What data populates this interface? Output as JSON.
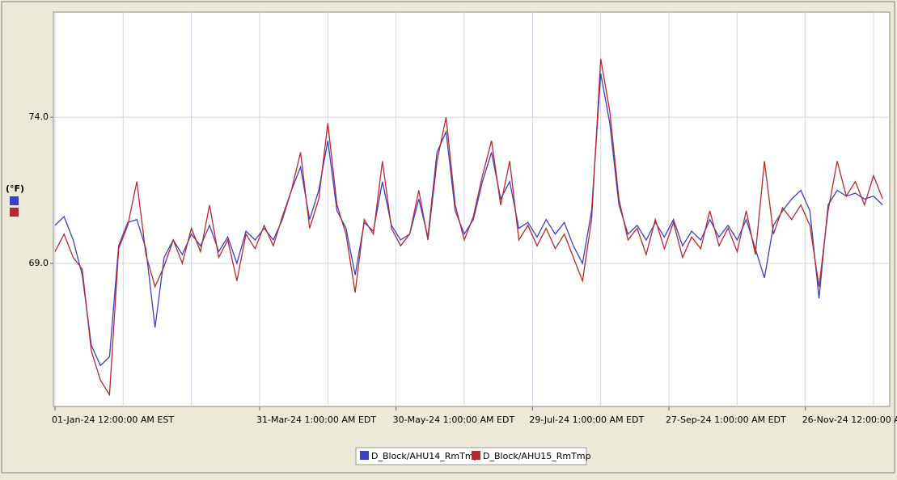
{
  "chart_data": {
    "type": "line",
    "y_label": "(°F)",
    "x": [
      0,
      4,
      8,
      12,
      16,
      20,
      24,
      28,
      32,
      36,
      40,
      44,
      48,
      52,
      56,
      60,
      64,
      68,
      72,
      76,
      80,
      84,
      88,
      92,
      96,
      100,
      104,
      108,
      112,
      116,
      120,
      124,
      128,
      132,
      136,
      140,
      144,
      148,
      152,
      156,
      160,
      164,
      168,
      172,
      176,
      180,
      184,
      188,
      192,
      196,
      200,
      204,
      208,
      212,
      216,
      220,
      224,
      228,
      232,
      236,
      240,
      244,
      248,
      252,
      256,
      260,
      264,
      268,
      272,
      276,
      280,
      284,
      288,
      292,
      296,
      300,
      304,
      308,
      312,
      316,
      320,
      324,
      328,
      332,
      336,
      340,
      344,
      348,
      352,
      356,
      360,
      364
    ],
    "series": [
      {
        "name": "D_Block/AHU14_RmTmp",
        "color": "#3b3fc9",
        "values": [
          70.3,
          70.6,
          69.8,
          68.6,
          66.2,
          65.5,
          65.8,
          69.6,
          70.4,
          70.5,
          69.5,
          66.8,
          69.2,
          69.8,
          69.3,
          70.0,
          69.6,
          70.3,
          69.4,
          69.9,
          69.0,
          70.1,
          69.8,
          70.2,
          69.8,
          70.5,
          71.5,
          72.3,
          70.5,
          71.5,
          73.2,
          70.8,
          70.2,
          68.6,
          70.4,
          70.1,
          71.8,
          70.3,
          69.8,
          70.0,
          71.2,
          69.9,
          72.8,
          73.5,
          70.8,
          70.0,
          70.5,
          71.8,
          72.8,
          71.2,
          71.8,
          70.2,
          70.4,
          69.9,
          70.5,
          70.0,
          70.4,
          69.6,
          69.0,
          70.8,
          75.5,
          73.8,
          71.0,
          70.0,
          70.3,
          69.8,
          70.4,
          69.9,
          70.5,
          69.6,
          70.1,
          69.8,
          70.5,
          69.9,
          70.3,
          69.8,
          70.5,
          69.5,
          68.5,
          70.3,
          70.8,
          71.2,
          71.5,
          70.8,
          67.8,
          71.0,
          71.5,
          71.3,
          71.4,
          71.2,
          71.3,
          71.0
        ]
      },
      {
        "name": "D_Block/AHU15_RmTmp",
        "color": "#b8282c",
        "values": [
          69.4,
          70.0,
          69.2,
          68.8,
          66.0,
          65.0,
          64.5,
          69.5,
          70.3,
          71.8,
          69.3,
          68.2,
          68.9,
          69.8,
          69.0,
          70.2,
          69.4,
          71.0,
          69.2,
          69.8,
          68.4,
          70.0,
          69.5,
          70.3,
          69.6,
          70.6,
          71.5,
          72.8,
          70.2,
          71.2,
          73.8,
          71.0,
          70.0,
          68.0,
          70.5,
          70.0,
          72.5,
          70.2,
          69.6,
          70.0,
          71.5,
          69.8,
          72.5,
          74.0,
          71.0,
          69.8,
          70.6,
          72.0,
          73.2,
          71.0,
          72.5,
          69.8,
          70.3,
          69.6,
          70.2,
          69.5,
          70.0,
          69.2,
          68.4,
          70.5,
          76.0,
          74.2,
          71.2,
          69.8,
          70.2,
          69.3,
          70.5,
          69.5,
          70.4,
          69.2,
          69.9,
          69.5,
          70.8,
          69.6,
          70.2,
          69.4,
          70.8,
          69.3,
          72.5,
          70.0,
          70.9,
          70.5,
          71.0,
          70.3,
          68.2,
          70.8,
          72.5,
          71.3,
          71.8,
          71.0,
          72.0,
          71.2
        ]
      }
    ],
    "xlim": [
      -0.7,
      367.1
    ],
    "xticks": [
      {
        "value": 0,
        "label": "01-Jan-24 12:00:00 AM EST"
      },
      {
        "value": 90,
        "label": "31-Mar-24 1:00:00 AM EDT"
      },
      {
        "value": 150,
        "label": "30-May-24 1:00:00 AM EDT"
      },
      {
        "value": 210,
        "label": "29-Jul-24 1:00:00 AM EDT"
      },
      {
        "value": 270,
        "label": "27-Sep-24 1:00:00 AM EDT"
      },
      {
        "value": 330,
        "label": "26-Nov-24 12:00:00 AM EST"
      }
    ],
    "xgrid": [
      30,
      60,
      120,
      180,
      240,
      300,
      360
    ],
    "ylim": [
      64.1,
      77.6
    ],
    "yticks": [
      {
        "value": 69,
        "label": "69.0"
      },
      {
        "value": 74,
        "label": "74.0"
      }
    ],
    "grid": true,
    "legend": "bottom"
  }
}
